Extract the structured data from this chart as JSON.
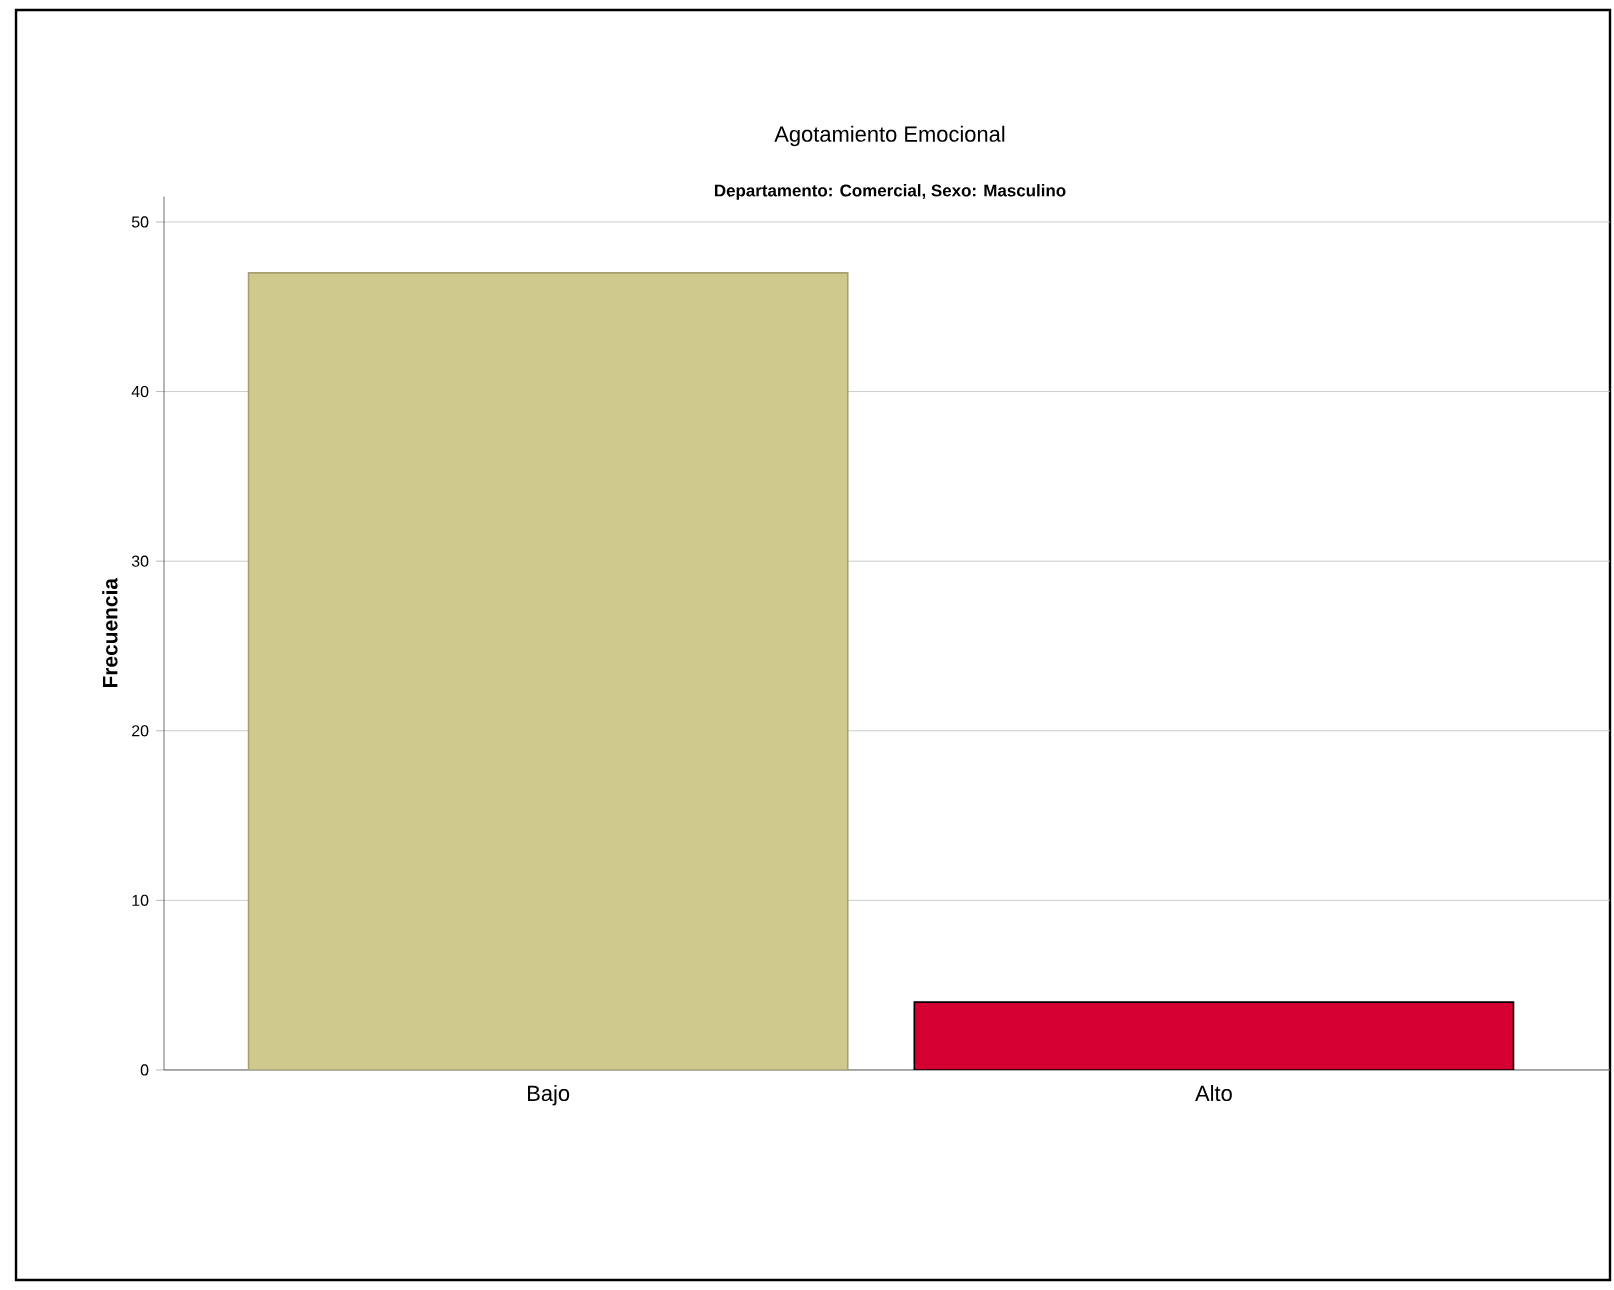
{
  "chart_data": {
    "type": "bar",
    "title": "Agotamiento Emocional",
    "subtitle": "Departamento: Comercial, Sexo: Masculino",
    "ylabel": "Frecuencia",
    "categories": [
      "Bajo",
      "Alto"
    ],
    "values": [
      47,
      4
    ],
    "colors": [
      "#d0c98e",
      "#d50032"
    ],
    "ylim": [
      0,
      51.5
    ],
    "yticks": [
      0,
      10,
      20,
      30,
      40,
      50
    ],
    "grid": "y"
  }
}
